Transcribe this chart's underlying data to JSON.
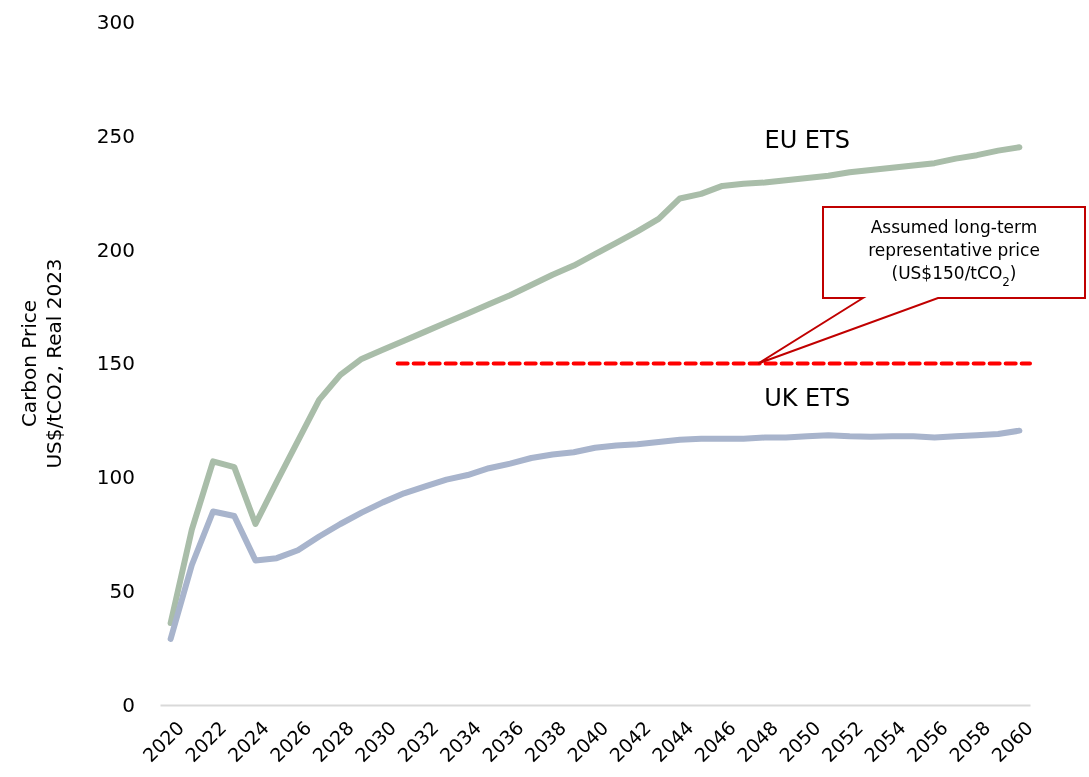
{
  "chart_data": {
    "type": "line",
    "ylabel": "Carbon Price\nUS$/tCO2, Real 2023",
    "x": [
      2020,
      2021,
      2022,
      2023,
      2024,
      2025,
      2026,
      2027,
      2028,
      2029,
      2030,
      2031,
      2032,
      2033,
      2034,
      2035,
      2036,
      2037,
      2038,
      2039,
      2040,
      2041,
      2042,
      2043,
      2044,
      2045,
      2046,
      2047,
      2048,
      2049,
      2050,
      2051,
      2052,
      2053,
      2054,
      2055,
      2056,
      2057,
      2058,
      2059,
      2060
    ],
    "xlim": [
      2019.5,
      2060.5
    ],
    "xticks": [
      2020,
      2022,
      2024,
      2026,
      2028,
      2030,
      2032,
      2034,
      2036,
      2038,
      2040,
      2042,
      2044,
      2046,
      2048,
      2050,
      2052,
      2054,
      2056,
      2058,
      2060
    ],
    "ylim": [
      0,
      300
    ],
    "yticks": [
      0,
      50,
      100,
      150,
      200,
      250,
      300
    ],
    "grid": false,
    "legend": false,
    "line_style": "solid",
    "marker": "none",
    "series": [
      {
        "name": "EU ETS",
        "color": "#a9bda9",
        "values": [
          36,
          77,
          107,
          104.5,
          79.5,
          98,
          116,
          134,
          145,
          152,
          156,
          160,
          164,
          168,
          172,
          176,
          180,
          184.5,
          189,
          193,
          198,
          203,
          208,
          213.5,
          222.5,
          224.5,
          228,
          229,
          229.5,
          230.5,
          231.5,
          232.5,
          234,
          235,
          236,
          237,
          238,
          240,
          241.5,
          243.5,
          245
        ]
      },
      {
        "name": "UK ETS",
        "color": "#a8b4cc",
        "values": [
          29,
          61.5,
          85,
          83,
          63.5,
          64.5,
          68,
          74,
          79.5,
          84.5,
          89,
          93,
          96,
          99,
          101,
          104,
          106,
          108.5,
          110,
          111,
          113,
          114,
          114.5,
          115.5,
          116.5,
          117,
          117,
          117,
          117.5,
          117.5,
          118,
          118.5,
          118,
          117.8,
          118,
          118,
          117.5,
          118,
          118.5,
          119,
          120.5
        ]
      },
      {
        "type": "line",
        "color": "#ff0000",
        "line_style": "dashed",
        "x": [
          2030.7,
          2060.5
        ],
        "values": [
          150,
          150
        ]
      }
    ],
    "annotations": [
      "Assumed long-term\nrepresentative price\n(US$150/tCO$_{2}$)"
    ]
  }
}
